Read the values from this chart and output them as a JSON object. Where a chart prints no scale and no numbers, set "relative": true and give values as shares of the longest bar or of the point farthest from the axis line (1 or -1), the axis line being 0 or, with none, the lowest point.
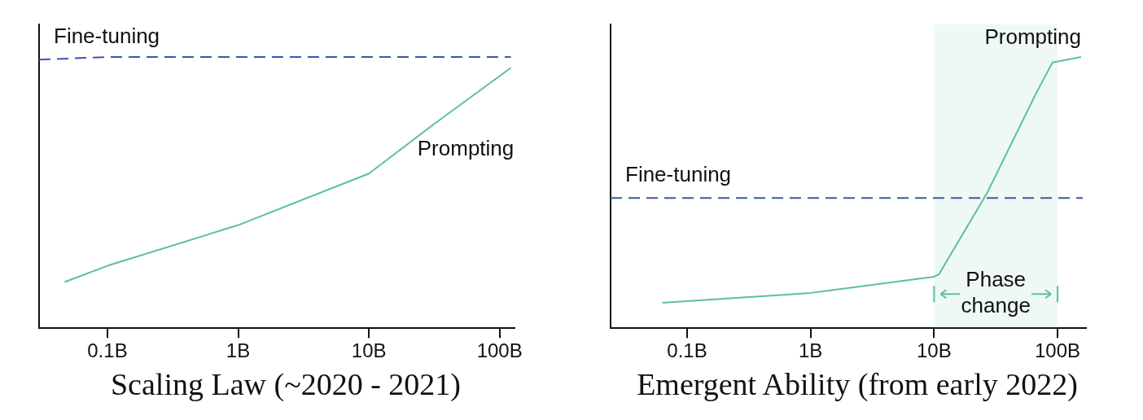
{
  "chart_data": [
    {
      "type": "line",
      "title": "Scaling Law (~2020 - 2021)",
      "relative": true,
      "log": "x",
      "xlim": [
        0.03,
        130
      ],
      "xticks": [
        {
          "value": 0.1,
          "label": "0.1B"
        },
        {
          "value": 1,
          "label": "1B"
        },
        {
          "value": 10,
          "label": "10B"
        },
        {
          "value": 100,
          "label": "100B"
        }
      ],
      "tick_labels": "x",
      "grid": false,
      "legend": false,
      "series": [
        {
          "name": "Fine-tuning",
          "color": "#3a55b8",
          "line_style": "dashed",
          "x": [
            0.03,
            0.1,
            1,
            10,
            100,
            122
          ],
          "values": [
            0.99,
            1.0,
            1.0,
            1.0,
            1.0,
            1.0
          ]
        },
        {
          "name": "Prompting",
          "color": "#5bbf9f",
          "line_style": "solid",
          "x": [
            0.047,
            0.1,
            1,
            10,
            31,
            122
          ],
          "values": [
            0.17,
            0.23,
            0.38,
            0.57,
            0.75,
            0.96
          ]
        }
      ]
    },
    {
      "type": "line",
      "title": "Emergent Ability (from early 2022)",
      "relative": true,
      "log": "x",
      "xlim": [
        0.024,
        170
      ],
      "xticks": [
        {
          "value": 0.1,
          "label": "0.1B"
        },
        {
          "value": 1,
          "label": "1B"
        },
        {
          "value": 10,
          "label": "10B"
        },
        {
          "value": 100,
          "label": "100B"
        }
      ],
      "tick_labels": "x",
      "grid": false,
      "legend": false,
      "bands": [
        {
          "axis": "x",
          "from": 10,
          "to": 100,
          "label": "Phase change",
          "color": "#5bbf9f"
        }
      ],
      "series": [
        {
          "name": "Fine-tuning",
          "color": "#3a55b8",
          "line_style": "dashed",
          "x": [
            0.024,
            0.1,
            1,
            10,
            100,
            160
          ],
          "values": [
            0.48,
            0.48,
            0.48,
            0.48,
            0.48,
            0.48
          ]
        },
        {
          "name": "Prompting",
          "color": "#5bbf9f",
          "line_style": "solid",
          "x": [
            0.063,
            1,
            10,
            11,
            27,
            66,
            91,
            155
          ],
          "values": [
            0.094,
            0.13,
            0.19,
            0.2,
            0.5,
            0.86,
            0.98,
            1.0
          ]
        }
      ]
    }
  ]
}
